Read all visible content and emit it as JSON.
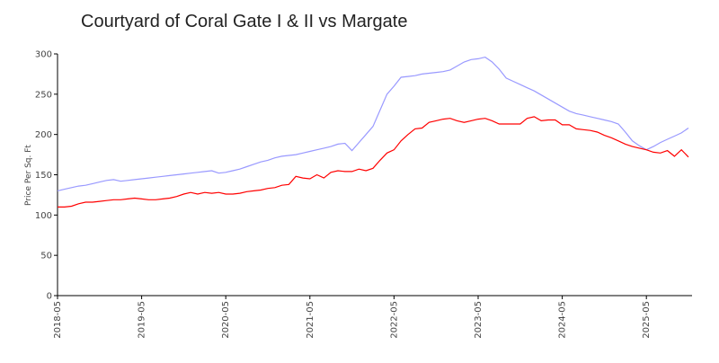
{
  "chart_data": {
    "type": "line",
    "title": "Courtyard of Coral Gate I & II vs Margate",
    "y_label": "Price Per Sq. Ft",
    "x": [
      "2018-05",
      "2018-06",
      "2018-07",
      "2018-08",
      "2018-09",
      "2018-10",
      "2018-11",
      "2018-12",
      "2019-01",
      "2019-02",
      "2019-03",
      "2019-04",
      "2019-05",
      "2019-06",
      "2019-07",
      "2019-08",
      "2019-09",
      "2019-10",
      "2019-11",
      "2019-12",
      "2020-01",
      "2020-02",
      "2020-03",
      "2020-04",
      "2020-05",
      "2020-06",
      "2020-07",
      "2020-08",
      "2020-09",
      "2020-10",
      "2020-11",
      "2020-12",
      "2021-01",
      "2021-02",
      "2021-03",
      "2021-04",
      "2021-05",
      "2021-06",
      "2021-07",
      "2021-08",
      "2021-09",
      "2021-10",
      "2021-11",
      "2021-12",
      "2022-01",
      "2022-02",
      "2022-03",
      "2022-04",
      "2022-05",
      "2022-06",
      "2022-07",
      "2022-08",
      "2022-09",
      "2022-10",
      "2022-11",
      "2022-12",
      "2023-01",
      "2023-02",
      "2023-03",
      "2023-04",
      "2023-05",
      "2023-06",
      "2023-07",
      "2023-08",
      "2023-09",
      "2023-10",
      "2023-11",
      "2023-12",
      "2024-01",
      "2024-02",
      "2024-03",
      "2024-04",
      "2024-05",
      "2024-06",
      "2024-07",
      "2024-08",
      "2024-09",
      "2024-10",
      "2024-11",
      "2024-12",
      "2025-01",
      "2025-02",
      "2025-03",
      "2025-04",
      "2025-05",
      "2025-06",
      "2025-07",
      "2025-08",
      "2025-09",
      "2025-10",
      "2025-11"
    ],
    "series": [
      {
        "color": "#9999ff",
        "values": [
          130,
          132,
          134,
          136,
          137,
          139,
          141,
          143,
          144,
          142,
          143,
          144,
          145,
          146,
          147,
          148,
          149,
          150,
          151,
          152,
          153,
          154,
          155,
          152,
          153,
          155,
          157,
          160,
          163,
          166,
          168,
          171,
          173,
          174,
          175,
          177,
          179,
          181,
          183,
          185,
          188,
          189,
          180,
          190,
          200,
          210,
          230,
          250,
          260,
          271,
          272,
          273,
          275,
          276,
          277,
          278,
          280,
          285,
          290,
          293,
          294,
          296,
          290,
          281,
          270,
          266,
          262,
          258,
          254,
          249,
          244,
          239,
          234,
          229,
          226,
          224,
          222,
          220,
          218,
          216,
          213,
          203,
          192,
          186,
          181,
          185,
          190,
          194,
          198,
          202,
          208
        ]
      },
      {
        "color": "#ff0000",
        "values": [
          110,
          110,
          111,
          114,
          116,
          116,
          117,
          118,
          119,
          119,
          120,
          121,
          120,
          119,
          119,
          120,
          121,
          123,
          126,
          128,
          126,
          128,
          127,
          128,
          126,
          126,
          127,
          129,
          130,
          131,
          133,
          134,
          137,
          138,
          148,
          146,
          145,
          150,
          146,
          153,
          155,
          154,
          154,
          157,
          155,
          158,
          168,
          177,
          181,
          192,
          200,
          207,
          208,
          215,
          217,
          219,
          220,
          217,
          215,
          217,
          219,
          220,
          217,
          213,
          213,
          213,
          213,
          220,
          222,
          217,
          218,
          218,
          212,
          212,
          207,
          206,
          205,
          203,
          199,
          196,
          192,
          188,
          185,
          183,
          181,
          178,
          177,
          180,
          173,
          181,
          172
        ]
      }
    ],
    "ylim": [
      0,
      300
    ],
    "yticks": [
      0,
      50,
      100,
      150,
      200,
      250,
      300
    ],
    "xticks": [
      "2018-05",
      "2019-05",
      "2020-05",
      "2021-05",
      "2022-05",
      "2023-05",
      "2024-05",
      "2025-05"
    ]
  }
}
